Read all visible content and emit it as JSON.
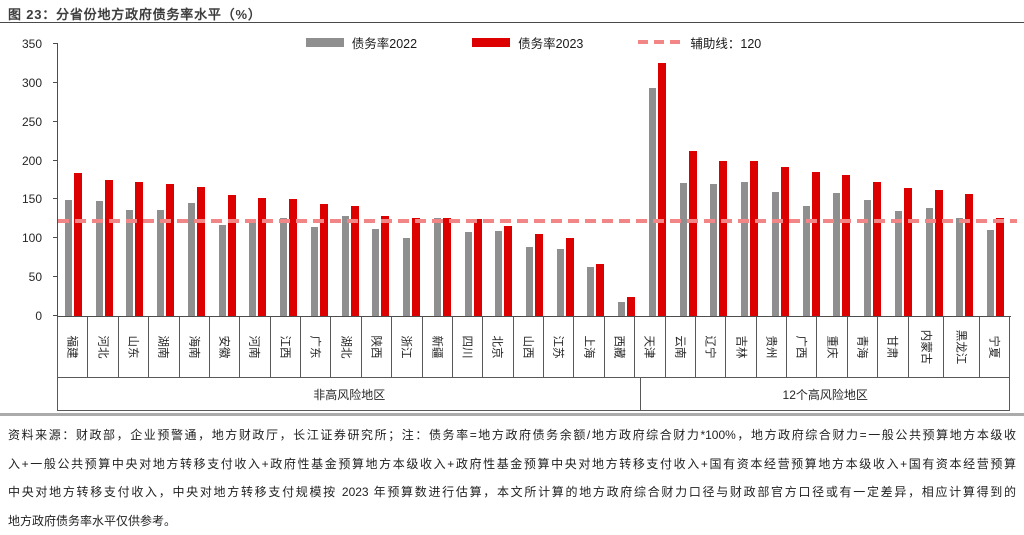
{
  "title": "图 23：分省份地方政府债务率水平（%）",
  "legend": [
    {
      "label": "债务率2022",
      "type": "bar",
      "color": "#8F8F8F"
    },
    {
      "label": "债务率2023",
      "type": "bar",
      "color": "#DD0000"
    },
    {
      "label": "辅助线：120",
      "type": "dash",
      "color": "#F28686"
    }
  ],
  "chart_data": {
    "type": "bar",
    "title": "分省份地方政府债务率水平（%）",
    "xlabel": "",
    "ylabel": "",
    "ylim": [
      0,
      350
    ],
    "ytick_interval": 50,
    "grid": false,
    "legend_position": "top-center",
    "categories": [
      "福建",
      "河北",
      "山东",
      "湖南",
      "海南",
      "安徽",
      "河南",
      "江西",
      "广东",
      "湖北",
      "陕西",
      "浙江",
      "新疆",
      "四川",
      "北京",
      "山西",
      "江苏",
      "上海",
      "西藏",
      "天津",
      "云南",
      "辽宁",
      "吉林",
      "贵州",
      "广西",
      "重庆",
      "青海",
      "甘肃",
      "内蒙古",
      "黑龙江",
      "宁夏"
    ],
    "series": [
      {
        "key": "2022",
        "name": "债务率2022",
        "color": "#8F8F8F",
        "values": [
          149,
          148,
          136,
          136,
          145,
          117,
          124,
          126,
          115,
          129,
          112,
          100,
          126,
          108,
          109,
          89,
          86,
          63,
          18,
          293,
          171,
          170,
          172,
          160,
          142,
          158,
          149,
          135,
          139,
          126,
          111
        ]
      },
      {
        "key": "2023",
        "name": "债务率2023",
        "color": "#DD0000",
        "values": [
          184,
          175,
          172,
          170,
          166,
          156,
          152,
          150,
          144,
          141,
          129,
          126,
          126,
          125,
          116,
          106,
          100,
          67,
          25,
          326,
          213,
          199,
          199,
          192,
          185,
          181,
          173,
          165,
          162,
          157,
          126
        ]
      }
    ],
    "reference_line": {
      "label": "辅助线：120",
      "value": 120,
      "color": "#F28686",
      "style": "dashed"
    },
    "groups": [
      {
        "label": "非高风险地区",
        "span": 19
      },
      {
        "label": "12个高风险地区",
        "span": 12
      }
    ]
  },
  "footer": {
    "lines": [
      "资料来源：财政部，企业预警通，地方财政厅，长江证券研究所；注：债务率=地方政府债务余额/地方政府综合财力*100%，地方政府综合财力=一般公共预算地方本级收",
      "入+一般公共预算中央对地方转移支付收入+政府性基金预算地方本级收入+政府性基金预算中央对地方转移支付收入+国有资本经营预算地方本级收入+国有资本经营预算",
      "中央对地方转移支付收入，中央对地方转移支付规模按 2023 年预算数进行估算，本文所计算的地方政府综合财力口径与财政部官方口径或有一定差异，相应计算得到的",
      "地方政府债务率水平仅供参考。"
    ]
  }
}
